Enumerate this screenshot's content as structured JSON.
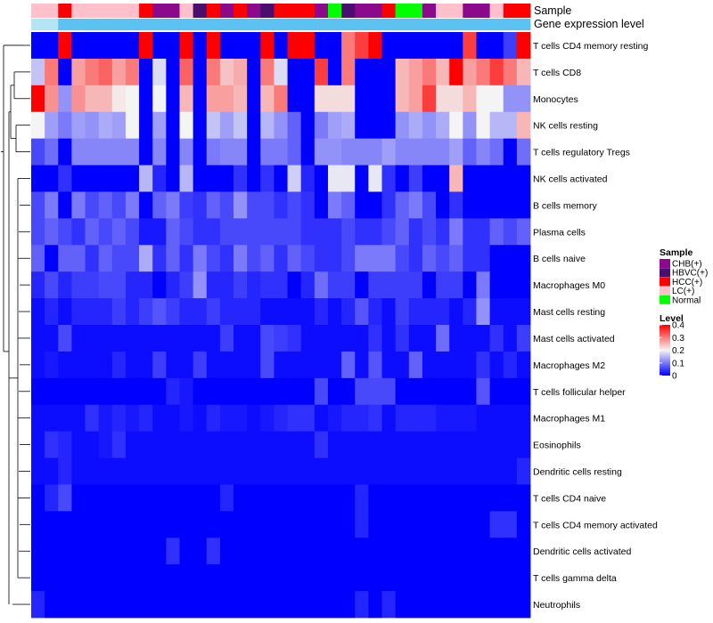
{
  "chart_data": {
    "type": "heatmap",
    "annotation_rows": [
      "Sample",
      "Gene expression level"
    ],
    "rows": [
      "T cells CD4 memory resting",
      "T cells CD8",
      "Monocytes",
      "NK cells resting",
      "T cells regulatory  Tregs",
      "NK cells activated",
      "B cells memory",
      "Plasma cells",
      "B cells naive",
      "Macrophages M0",
      "Mast cells resting",
      "Mast cells activated",
      "Macrophages M2",
      "T cells follicular helper",
      "Macrophages M1",
      "Eosinophils",
      "Dendritic cells resting",
      "T cells CD4 naive",
      "T cells CD4 memory activated",
      "Dendritic cells activated",
      "T cells gamma delta",
      "Neutrophils"
    ],
    "sample_groups": [
      "LC(+)",
      "LC(+)",
      "HCC(+)",
      "LC(+)",
      "LC(+)",
      "LC(+)",
      "LC(+)",
      "LC(+)",
      "HCC(+)",
      "CHB(+)",
      "CHB(+)",
      "LC(+)",
      "HBVC(+)",
      "HCC(+)",
      "CHB(+)",
      "HCC(+)",
      "CHB(+)",
      "HBVC(+)",
      "HCC(+)",
      "HCC(+)",
      "HCC(+)",
      "CHB(+)",
      "Normal",
      "HBVC(+)",
      "CHB(+)",
      "CHB(+)",
      "HCC(+)",
      "Normal",
      "Normal",
      "CHB(+)",
      "LC(+)",
      "LC(+)",
      "CHB(+)",
      "CHB(+)",
      "LC(+)",
      "HCC(+)",
      "HCC(+)"
    ],
    "expression_level_group": [
      "low",
      "low",
      "high",
      "high",
      "high",
      "high",
      "high",
      "high",
      "high",
      "high",
      "high",
      "high",
      "high",
      "high",
      "high",
      "high",
      "high",
      "high",
      "high",
      "high",
      "high",
      "high",
      "high",
      "high",
      "high",
      "high",
      "high",
      "high",
      "high",
      "high",
      "high",
      "high",
      "high",
      "high",
      "high",
      "high",
      "high"
    ],
    "values": [
      [
        0.0,
        0.0,
        0.4,
        0.0,
        0.0,
        0.0,
        0.0,
        0.0,
        0.4,
        0.0,
        0.0,
        0.4,
        0.0,
        0.4,
        0.0,
        0.0,
        0.0,
        0.4,
        0.0,
        0.4,
        0.4,
        0.0,
        0.0,
        0.3,
        0.35,
        0.4,
        0.0,
        0.0,
        0.0,
        0.0,
        0.0,
        0.0,
        0.35,
        0.0,
        0.0,
        0.05,
        0.4
      ],
      [
        0.16,
        0.3,
        0.0,
        0.27,
        0.3,
        0.32,
        0.27,
        0.3,
        0.0,
        0.18,
        0.0,
        0.32,
        0.0,
        0.3,
        0.24,
        0.26,
        0.0,
        0.3,
        0.18,
        0.0,
        0.0,
        0.35,
        0.0,
        0.3,
        0.0,
        0.0,
        0.0,
        0.25,
        0.27,
        0.3,
        0.25,
        0.4,
        0.27,
        0.3,
        0.35,
        0.3,
        0.25
      ],
      [
        0.4,
        0.28,
        0.12,
        0.28,
        0.25,
        0.25,
        0.21,
        0.2,
        0.0,
        0.2,
        0.0,
        0.25,
        0.0,
        0.27,
        0.27,
        0.25,
        0.0,
        0.25,
        0.3,
        0.0,
        0.0,
        0.22,
        0.22,
        0.22,
        0.0,
        0.0,
        0.0,
        0.25,
        0.27,
        0.35,
        0.22,
        0.22,
        0.25,
        0.2,
        0.2,
        0.12,
        0.12
      ],
      [
        0.2,
        0.13,
        0.1,
        0.13,
        0.12,
        0.14,
        0.13,
        0.2,
        0.0,
        0.13,
        0.0,
        0.2,
        0.0,
        0.16,
        0.13,
        0.16,
        0.0,
        0.15,
        0.12,
        0.08,
        0.0,
        0.1,
        0.13,
        0.14,
        0.0,
        0.0,
        0.0,
        0.12,
        0.14,
        0.12,
        0.14,
        0.2,
        0.12,
        0.2,
        0.15,
        0.15,
        0.25
      ],
      [
        0.06,
        0.09,
        0.0,
        0.11,
        0.11,
        0.11,
        0.11,
        0.11,
        0.0,
        0.11,
        0.0,
        0.11,
        0.0,
        0.1,
        0.11,
        0.11,
        0.0,
        0.1,
        0.1,
        0.08,
        0.0,
        0.12,
        0.12,
        0.11,
        0.11,
        0.11,
        0.13,
        0.11,
        0.11,
        0.11,
        0.11,
        0.13,
        0.08,
        0.11,
        0.09,
        0.0,
        0.09
      ],
      [
        0.0,
        0.0,
        0.04,
        0.0,
        0.0,
        0.0,
        0.0,
        0.0,
        0.15,
        0.03,
        0.0,
        0.15,
        0.0,
        0.0,
        0.0,
        0.04,
        0.0,
        0.04,
        0.0,
        0.17,
        0.03,
        0.0,
        0.19,
        0.19,
        0.0,
        0.19,
        0.04,
        0.0,
        0.05,
        0.0,
        0.0,
        0.25,
        0.0,
        0.0,
        0.0,
        0.0,
        0.0
      ],
      [
        0.06,
        0.1,
        0.0,
        0.1,
        0.06,
        0.08,
        0.06,
        0.1,
        0.0,
        0.08,
        0.1,
        0.05,
        0.04,
        0.08,
        0.06,
        0.12,
        0.06,
        0.06,
        0.04,
        0.06,
        0.04,
        0.0,
        0.1,
        0.08,
        0.0,
        0.0,
        0.04,
        0.08,
        0.1,
        0.06,
        0.0,
        0.04,
        0.0,
        0.0,
        0.0,
        0.0,
        0.0
      ],
      [
        0.06,
        0.08,
        0.06,
        0.04,
        0.08,
        0.06,
        0.08,
        0.06,
        0.02,
        0.02,
        0.08,
        0.06,
        0.04,
        0.04,
        0.06,
        0.06,
        0.06,
        0.06,
        0.06,
        0.06,
        0.04,
        0.04,
        0.04,
        0.06,
        0.04,
        0.04,
        0.06,
        0.08,
        0.04,
        0.06,
        0.04,
        0.1,
        0.04,
        0.04,
        0.08,
        0.06,
        0.08
      ],
      [
        0.08,
        0.0,
        0.08,
        0.08,
        0.04,
        0.08,
        0.06,
        0.06,
        0.14,
        0.04,
        0.08,
        0.04,
        0.1,
        0.06,
        0.04,
        0.1,
        0.06,
        0.08,
        0.04,
        0.08,
        0.06,
        0.04,
        0.04,
        0.06,
        0.1,
        0.1,
        0.1,
        0.06,
        0.04,
        0.08,
        0.06,
        0.08,
        0.04,
        0.04,
        0.0,
        0.0,
        0.0
      ],
      [
        0.03,
        0.06,
        0.03,
        0.05,
        0.05,
        0.06,
        0.06,
        0.03,
        0.03,
        0.0,
        0.03,
        0.05,
        0.12,
        0.03,
        0.03,
        0.05,
        0.03,
        0.04,
        0.04,
        0.0,
        0.03,
        0.09,
        0.05,
        0.05,
        0.0,
        0.05,
        0.05,
        0.05,
        0.05,
        0.0,
        0.05,
        0.05,
        0.0,
        0.1,
        0.0,
        0.0,
        0.0
      ],
      [
        0.01,
        0.03,
        0.01,
        0.03,
        0.03,
        0.03,
        0.05,
        0.03,
        0.05,
        0.07,
        0.05,
        0.03,
        0.03,
        0.05,
        0.03,
        0.03,
        0.03,
        0.01,
        0.01,
        0.01,
        0.01,
        0.03,
        0.01,
        0.03,
        0.07,
        0.03,
        0.01,
        0.05,
        0.03,
        0.03,
        0.03,
        0.01,
        0.03,
        0.12,
        0.01,
        0.01,
        0.01
      ],
      [
        0.01,
        0.01,
        0.06,
        0.01,
        0.01,
        0.01,
        0.01,
        0.01,
        0.01,
        0.01,
        0.01,
        0.01,
        0.01,
        0.01,
        0.05,
        0.01,
        0.01,
        0.06,
        0.05,
        0.04,
        0.01,
        0.01,
        0.01,
        0.01,
        0.01,
        0.04,
        0.01,
        0.04,
        0.01,
        0.01,
        0.09,
        0.01,
        0.01,
        0.01,
        0.04,
        0.01,
        0.05
      ],
      [
        0.01,
        0.02,
        0.01,
        0.01,
        0.01,
        0.01,
        0.03,
        0.01,
        0.01,
        0.05,
        0.01,
        0.01,
        0.05,
        0.01,
        0.01,
        0.01,
        0.01,
        0.06,
        0.01,
        0.01,
        0.01,
        0.01,
        0.01,
        0.08,
        0.01,
        0.07,
        0.01,
        0.01,
        0.08,
        0.01,
        0.01,
        0.01,
        0.01,
        0.04,
        0.01,
        0.03,
        0.01
      ],
      [
        0.0,
        0.0,
        0.0,
        0.0,
        0.0,
        0.0,
        0.0,
        0.0,
        0.0,
        0.0,
        0.03,
        0.02,
        0.0,
        0.0,
        0.0,
        0.0,
        0.0,
        0.0,
        0.0,
        0.0,
        0.0,
        0.06,
        0.0,
        0.0,
        0.06,
        0.06,
        0.06,
        0.0,
        0.0,
        0.0,
        0.0,
        0.0,
        0.0,
        0.07,
        0.0,
        0.0,
        0.0
      ],
      [
        0.01,
        0.01,
        0.01,
        0.01,
        0.04,
        0.02,
        0.03,
        0.02,
        0.03,
        0.01,
        0.01,
        0.02,
        0.01,
        0.03,
        0.02,
        0.02,
        0.01,
        0.02,
        0.03,
        0.04,
        0.04,
        0.01,
        0.02,
        0.03,
        0.03,
        0.04,
        0.01,
        0.03,
        0.03,
        0.03,
        0.02,
        0.02,
        0.02,
        0.01,
        0.01,
        0.01,
        0.01
      ],
      [
        0.01,
        0.04,
        0.03,
        0.01,
        0.01,
        0.02,
        0.04,
        0.01,
        0.01,
        0.01,
        0.01,
        0.01,
        0.01,
        0.01,
        0.01,
        0.01,
        0.01,
        0.01,
        0.01,
        0.01,
        0.01,
        0.04,
        0.01,
        0.01,
        0.01,
        0.01,
        0.01,
        0.01,
        0.01,
        0.01,
        0.01,
        0.01,
        0.01,
        0.01,
        0.01,
        0.01,
        0.01
      ],
      [
        0.01,
        0.01,
        0.03,
        0.01,
        0.01,
        0.01,
        0.01,
        0.01,
        0.01,
        0.01,
        0.01,
        0.01,
        0.01,
        0.01,
        0.01,
        0.01,
        0.01,
        0.01,
        0.01,
        0.01,
        0.01,
        0.01,
        0.01,
        0.01,
        0.01,
        0.01,
        0.01,
        0.01,
        0.01,
        0.01,
        0.01,
        0.01,
        0.01,
        0.01,
        0.01,
        0.01,
        0.03
      ],
      [
        0.0,
        0.03,
        0.06,
        0.0,
        0.0,
        0.0,
        0.0,
        0.0,
        0.0,
        0.0,
        0.0,
        0.0,
        0.0,
        0.0,
        0.03,
        0.0,
        0.0,
        0.0,
        0.0,
        0.0,
        0.0,
        0.0,
        0.0,
        0.0,
        0.03,
        0.0,
        0.0,
        0.0,
        0.0,
        0.0,
        0.0,
        0.0,
        0.0,
        0.0,
        0.0,
        0.0,
        0.0
      ],
      [
        0.0,
        0.0,
        0.0,
        0.0,
        0.0,
        0.0,
        0.0,
        0.0,
        0.0,
        0.0,
        0.0,
        0.0,
        0.0,
        0.0,
        0.0,
        0.0,
        0.0,
        0.0,
        0.0,
        0.0,
        0.0,
        0.0,
        0.0,
        0.0,
        0.03,
        0.0,
        0.0,
        0.0,
        0.0,
        0.0,
        0.0,
        0.0,
        0.0,
        0.0,
        0.04,
        0.04,
        0.0
      ],
      [
        0.0,
        0.0,
        0.0,
        0.0,
        0.0,
        0.0,
        0.0,
        0.0,
        0.0,
        0.0,
        0.04,
        0.0,
        0.0,
        0.04,
        0.0,
        0.0,
        0.0,
        0.0,
        0.0,
        0.0,
        0.0,
        0.0,
        0.0,
        0.0,
        0.0,
        0.0,
        0.0,
        0.0,
        0.0,
        0.0,
        0.0,
        0.0,
        0.0,
        0.0,
        0.0,
        0.0,
        0.0
      ],
      [
        0.0,
        0.0,
        0.0,
        0.0,
        0.0,
        0.0,
        0.0,
        0.0,
        0.0,
        0.0,
        0.0,
        0.0,
        0.0,
        0.0,
        0.0,
        0.0,
        0.0,
        0.0,
        0.0,
        0.0,
        0.0,
        0.0,
        0.0,
        0.0,
        0.0,
        0.0,
        0.0,
        0.0,
        0.0,
        0.0,
        0.0,
        0.0,
        0.0,
        0.0,
        0.0,
        0.0,
        0.0
      ],
      [
        0.03,
        0.0,
        0.0,
        0.0,
        0.0,
        0.0,
        0.0,
        0.0,
        0.0,
        0.0,
        0.0,
        0.0,
        0.0,
        0.0,
        0.0,
        0.0,
        0.0,
        0.0,
        0.0,
        0.0,
        0.0,
        0.0,
        0.0,
        0.0,
        0.03,
        0.0,
        0.03,
        0.0,
        0.0,
        0.0,
        0.0,
        0.0,
        0.0,
        0.0,
        0.0,
        0.0,
        0.0
      ]
    ],
    "legend_sample": {
      "title": "Sample",
      "entries": [
        {
          "label": "CHB(+)",
          "color": "#8B0A8B"
        },
        {
          "label": "HBVC(+)",
          "color": "#4B0E6E"
        },
        {
          "label": "HCC(+)",
          "color": "#FF0000"
        },
        {
          "label": "LC(+)",
          "color": "#FFC0CB"
        },
        {
          "label": "Normal",
          "color": "#00FF00"
        }
      ]
    },
    "legend_level": {
      "title": "Level",
      "ticks": [
        "0.4",
        "0.3",
        "0.2",
        "0.1",
        "0"
      ],
      "range": [
        0,
        0.4
      ]
    },
    "level_colors": {
      "low": "#B3E5F5",
      "high": "#5BC2F2"
    },
    "colorscale": {
      "low": "#0000FF",
      "mid": "#F4F4F4",
      "high": "#FF0000",
      "mid_value": 0.2
    }
  }
}
